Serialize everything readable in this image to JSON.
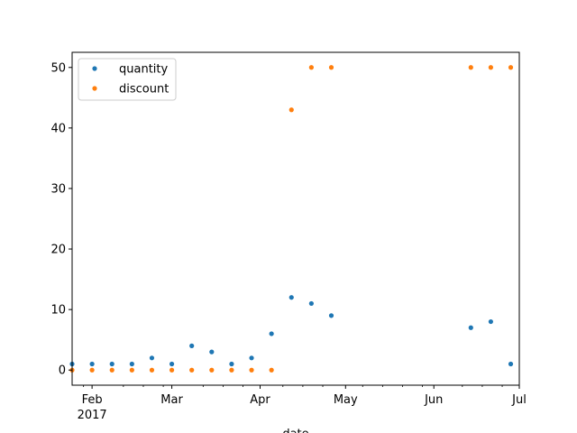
{
  "chart_data": {
    "type": "scatter",
    "xlabel": "date",
    "ylabel": "",
    "xlim": [
      "2017-01-25",
      "2017-07-01"
    ],
    "ylim": [
      -2.5,
      52.5
    ],
    "grid": false,
    "legend_position": "top-left",
    "y_ticks": [
      "0",
      "10",
      "20",
      "30",
      "40",
      "50"
    ],
    "x_major_ticks": [
      {
        "date": "2017-02-01",
        "label": "Feb",
        "sublabel": "2017"
      },
      {
        "date": "2017-03-01",
        "label": "Mar",
        "sublabel": ""
      },
      {
        "date": "2017-04-01",
        "label": "Apr",
        "sublabel": ""
      },
      {
        "date": "2017-05-01",
        "label": "May",
        "sublabel": ""
      },
      {
        "date": "2017-06-01",
        "label": "Jun",
        "sublabel": ""
      },
      {
        "date": "2017-07-01",
        "label": "Jul",
        "sublabel": ""
      }
    ],
    "x_minor_ticks": [
      "2017-01-29",
      "2017-02-12",
      "2017-02-19",
      "2017-02-26",
      "2017-03-12",
      "2017-03-19",
      "2017-03-26",
      "2017-04-09",
      "2017-04-16",
      "2017-04-23",
      "2017-05-07",
      "2017-05-14",
      "2017-05-21",
      "2017-05-28",
      "2017-06-11",
      "2017-06-18",
      "2017-06-25"
    ],
    "series": [
      {
        "name": "quantity",
        "color": "#1f77b4",
        "points": [
          {
            "x": "2017-01-25",
            "y": 1
          },
          {
            "x": "2017-02-01",
            "y": 1
          },
          {
            "x": "2017-02-08",
            "y": 1
          },
          {
            "x": "2017-02-15",
            "y": 1
          },
          {
            "x": "2017-02-22",
            "y": 2
          },
          {
            "x": "2017-03-01",
            "y": 1
          },
          {
            "x": "2017-03-08",
            "y": 4
          },
          {
            "x": "2017-03-15",
            "y": 3
          },
          {
            "x": "2017-03-22",
            "y": 1
          },
          {
            "x": "2017-03-29",
            "y": 2
          },
          {
            "x": "2017-04-05",
            "y": 6
          },
          {
            "x": "2017-04-12",
            "y": 12
          },
          {
            "x": "2017-04-19",
            "y": 11
          },
          {
            "x": "2017-04-26",
            "y": 9
          },
          {
            "x": "2017-06-14",
            "y": 7
          },
          {
            "x": "2017-06-21",
            "y": 8
          },
          {
            "x": "2017-06-28",
            "y": 1
          }
        ]
      },
      {
        "name": "discount",
        "color": "#ff7f0e",
        "points": [
          {
            "x": "2017-01-25",
            "y": 0
          },
          {
            "x": "2017-02-01",
            "y": 0
          },
          {
            "x": "2017-02-08",
            "y": 0
          },
          {
            "x": "2017-02-15",
            "y": 0
          },
          {
            "x": "2017-02-22",
            "y": 0
          },
          {
            "x": "2017-03-01",
            "y": 0
          },
          {
            "x": "2017-03-08",
            "y": 0
          },
          {
            "x": "2017-03-15",
            "y": 0
          },
          {
            "x": "2017-03-22",
            "y": 0
          },
          {
            "x": "2017-03-29",
            "y": 0
          },
          {
            "x": "2017-04-05",
            "y": 0
          },
          {
            "x": "2017-04-12",
            "y": 43
          },
          {
            "x": "2017-04-19",
            "y": 50
          },
          {
            "x": "2017-04-26",
            "y": 50
          },
          {
            "x": "2017-06-14",
            "y": 50
          },
          {
            "x": "2017-06-21",
            "y": 50
          },
          {
            "x": "2017-06-28",
            "y": 50
          }
        ]
      }
    ]
  }
}
